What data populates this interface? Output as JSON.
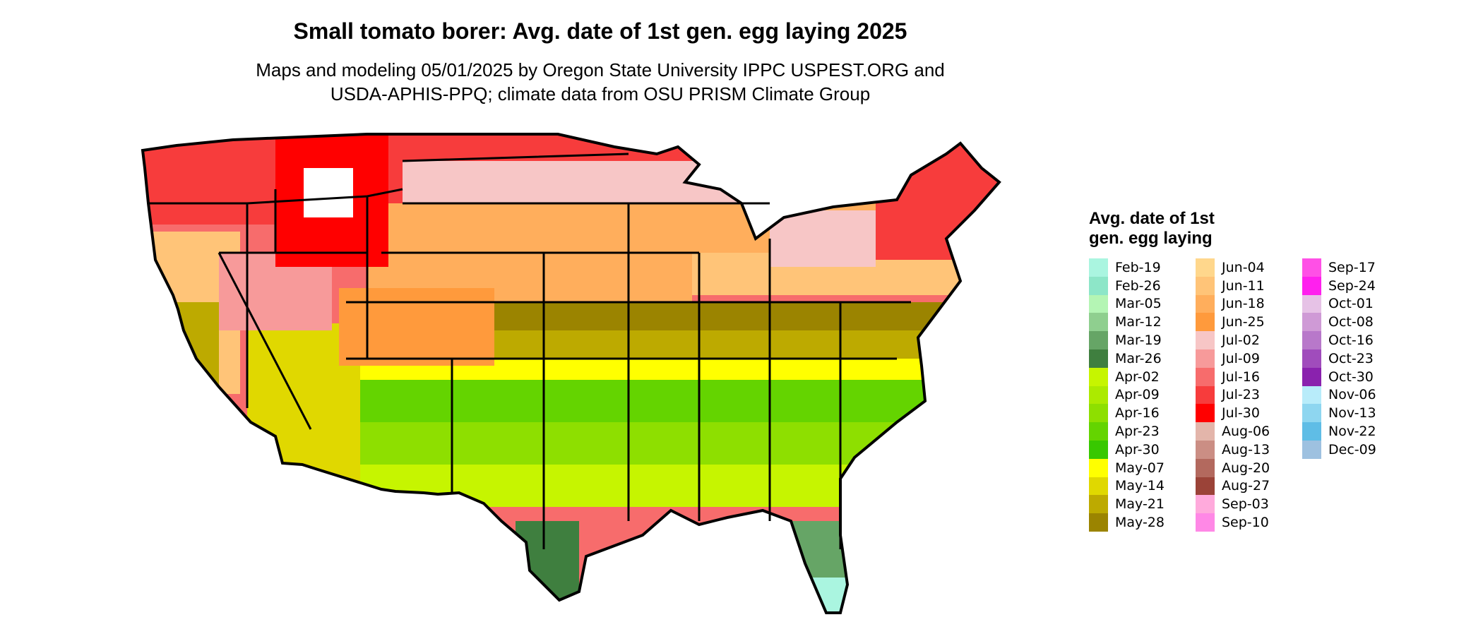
{
  "title": "Small tomato borer: Avg. date of 1st gen. egg laying 2025",
  "subtitle_lines": [
    "Maps and modeling 05/01/2025 by Oregon State University IPPC USPEST.ORG and",
    "USDA-APHIS-PPQ; climate data from OSU PRISM Climate Group"
  ],
  "legend": {
    "title": "Avg. date of 1st gen. egg laying",
    "columns": [
      [
        {
          "label": "Feb-19",
          "color": "#aaf5e0"
        },
        {
          "label": "Feb-26",
          "color": "#8de6c8"
        },
        {
          "label": "Mar-05",
          "color": "#b4f5b4"
        },
        {
          "label": "Mar-12",
          "color": "#8fcf8f"
        },
        {
          "label": "Mar-19",
          "color": "#66a566"
        },
        {
          "label": "Mar-26",
          "color": "#3f7f3f"
        },
        {
          "label": "Apr-02",
          "color": "#c6f500"
        },
        {
          "label": "Apr-09",
          "color": "#acea00"
        },
        {
          "label": "Apr-16",
          "color": "#8edf00"
        },
        {
          "label": "Apr-23",
          "color": "#64d400"
        },
        {
          "label": "Apr-30",
          "color": "#38c800"
        },
        {
          "label": "May-07",
          "color": "#ffff00"
        },
        {
          "label": "May-14",
          "color": "#e0d800"
        },
        {
          "label": "May-21",
          "color": "#bdaa00"
        },
        {
          "label": "May-28",
          "color": "#9b8400"
        }
      ],
      [
        {
          "label": "Jun-04",
          "color": "#ffd78c"
        },
        {
          "label": "Jun-11",
          "color": "#ffc478"
        },
        {
          "label": "Jun-18",
          "color": "#ffae5c"
        },
        {
          "label": "Jun-25",
          "color": "#ff9a3c"
        },
        {
          "label": "Jul-02",
          "color": "#f7c6c6"
        },
        {
          "label": "Jul-09",
          "color": "#f79a9a"
        },
        {
          "label": "Jul-16",
          "color": "#f76c6c"
        },
        {
          "label": "Jul-23",
          "color": "#f73c3c"
        },
        {
          "label": "Jul-30",
          "color": "#ff0000"
        },
        {
          "label": "Aug-06",
          "color": "#e3b5aa"
        },
        {
          "label": "Aug-13",
          "color": "#cb8e84"
        },
        {
          "label": "Aug-20",
          "color": "#b3695e"
        },
        {
          "label": "Aug-27",
          "color": "#9b4338"
        },
        {
          "label": "Sep-03",
          "color": "#ffaadc"
        },
        {
          "label": "Sep-10",
          "color": "#ff88e6"
        }
      ],
      [
        {
          "label": "Sep-17",
          "color": "#ff50e6"
        },
        {
          "label": "Sep-24",
          "color": "#ff20ee"
        },
        {
          "label": "Oct-01",
          "color": "#e6c2e6"
        },
        {
          "label": "Oct-08",
          "color": "#cf9ad6"
        },
        {
          "label": "Oct-16",
          "color": "#b878ca"
        },
        {
          "label": "Oct-23",
          "color": "#a04cbc"
        },
        {
          "label": "Oct-30",
          "color": "#8a22ae"
        },
        {
          "label": "Nov-06",
          "color": "#b8ecfa"
        },
        {
          "label": "Nov-13",
          "color": "#8ed6f0"
        },
        {
          "label": "Nov-22",
          "color": "#5fbde6"
        },
        {
          "label": "Dec-09",
          "color": "#9ec1e0"
        }
      ]
    ]
  }
}
